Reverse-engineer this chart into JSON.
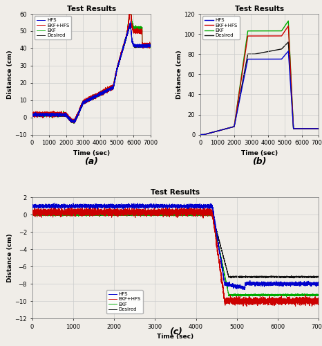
{
  "title": "Test Results",
  "xlabel": "Time (sec)",
  "ylabel": "Distance (cm)",
  "colors": {
    "HFS": "#0000cc",
    "EKF+HFS": "#cc0000",
    "EKF": "#00aa00",
    "Desired": "#111111"
  },
  "subplot_a": {
    "ylim": [
      -10,
      60
    ],
    "yticks": [
      -10,
      0,
      10,
      20,
      30,
      40,
      50,
      60
    ],
    "xlim": [
      0,
      7000
    ],
    "xticks": [
      0,
      1000,
      2000,
      3000,
      4000,
      5000,
      6000,
      7000
    ],
    "label": "(a)"
  },
  "subplot_b": {
    "ylim": [
      0,
      120
    ],
    "yticks": [
      0,
      20,
      40,
      60,
      80,
      100,
      120
    ],
    "xlim": [
      0,
      7000
    ],
    "xticks": [
      0,
      1000,
      2000,
      3000,
      4000,
      5000,
      6000,
      7000
    ],
    "label": "(b)"
  },
  "subplot_c": {
    "ylim": [
      -12,
      2
    ],
    "yticks": [
      -12,
      -10,
      -8,
      -6,
      -4,
      -2,
      0,
      2
    ],
    "xlim": [
      0,
      7000
    ],
    "xticks": [
      0,
      1000,
      2000,
      3000,
      4000,
      5000,
      6000,
      7000
    ],
    "label": "(c)"
  },
  "fig_facecolor": "#f0ede8",
  "ax_facecolor": "#f0ede8",
  "grid_color": "#cccccc",
  "linewidth": 0.7,
  "noise_seed": 42
}
